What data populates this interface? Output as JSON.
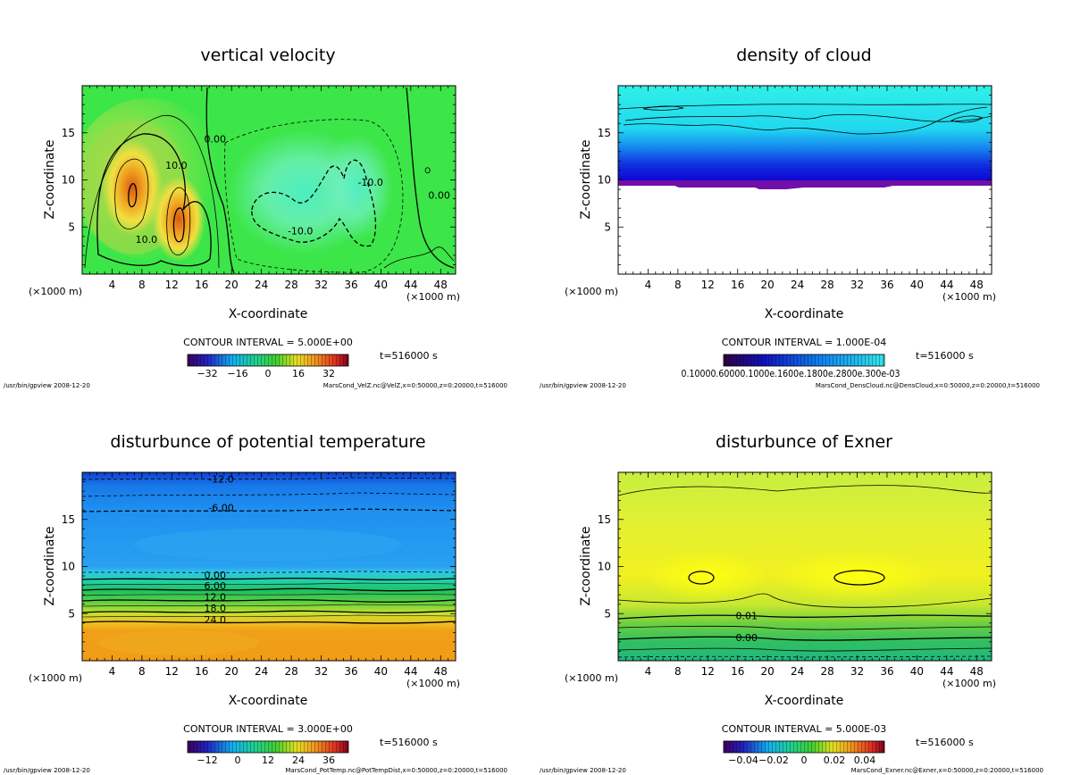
{
  "chart_data": [
    {
      "type": "heatmap",
      "key": "velz",
      "title": "vertical velocity",
      "xlabel": "X-coordinate",
      "ylabel": "Z-coordinate",
      "x_unit": "(×1000 m)",
      "xlim": [
        0,
        50
      ],
      "ylim": [
        0,
        20
      ],
      "xticks": [
        4,
        8,
        12,
        16,
        20,
        24,
        28,
        32,
        36,
        40,
        44,
        48
      ],
      "yticks": [
        5,
        10,
        15
      ],
      "contour_interval": "CONTOUR INTERVAL = 5.000E+00",
      "time": "t=516000 s",
      "colorbar_ticks": [
        "−32",
        "−16",
        "0",
        "16",
        "32"
      ],
      "contour_labels": [
        {
          "text": "10.0",
          "x": 12.6,
          "z": 11.2
        },
        {
          "text": "10.0",
          "x": 8.6,
          "z": 3.3
        },
        {
          "text": "0.00",
          "x": 17.8,
          "z": 14.0
        },
        {
          "text": "0.00",
          "x": 47.8,
          "z": 8.0
        },
        {
          "text": "-10.0",
          "x": 29.2,
          "z": 4.2
        },
        {
          "text": "-10.0",
          "x": 38.6,
          "z": 9.4
        }
      ],
      "footer_left": "/usr/bin/gpview  2008-12-20",
      "footer_right": "MarsCond_VelZ.nc@VelZ,x=0:50000,z=0:20000,t=516000"
    },
    {
      "type": "heatmap",
      "key": "cloud",
      "title": "density of cloud",
      "xlabel": "X-coordinate",
      "ylabel": "Z-coordinate",
      "x_unit": "(×1000 m)",
      "xlim": [
        0,
        50
      ],
      "ylim": [
        0,
        20
      ],
      "xticks": [
        4,
        8,
        12,
        16,
        20,
        24,
        28,
        32,
        36,
        40,
        44,
        48
      ],
      "yticks": [
        5,
        10,
        15
      ],
      "contour_interval": "CONTOUR INTERVAL = 1.000E-04",
      "time": "t=516000 s",
      "colorbar_ticks_text": "0.10000.60000.1000e.1600e.1800e.2800e.300e-03",
      "contour_labels": [],
      "footer_left": "/usr/bin/gpview  2008-12-20",
      "footer_right": "MarsCond_DensCloud.nc@DensCloud,x=0:50000,z=0:20000,t=516000"
    },
    {
      "type": "heatmap",
      "key": "ptemp",
      "title": "disturbunce of potential temperature",
      "xlabel": "X-coordinate",
      "ylabel": "Z-coordinate",
      "x_unit": "(×1000 m)",
      "xlim": [
        0,
        50
      ],
      "ylim": [
        0,
        20
      ],
      "xticks": [
        4,
        8,
        12,
        16,
        20,
        24,
        28,
        32,
        36,
        40,
        44,
        48
      ],
      "yticks": [
        5,
        10,
        15
      ],
      "contour_interval": "CONTOUR INTERVAL = 3.000E+00",
      "time": "t=516000 s",
      "colorbar_ticks": [
        "−12",
        "0",
        "12",
        "24",
        "36"
      ],
      "contour_labels": [
        {
          "text": "-12.0",
          "x": 18.6,
          "z": 18.9
        },
        {
          "text": "-6.00",
          "x": 18.6,
          "z": 15.9
        },
        {
          "text": "0.00",
          "x": 17.8,
          "z": 8.7
        },
        {
          "text": "6.00",
          "x": 17.8,
          "z": 7.6
        },
        {
          "text": "12.0",
          "x": 17.8,
          "z": 6.4
        },
        {
          "text": "18.0",
          "x": 17.8,
          "z": 5.2
        },
        {
          "text": "24.0",
          "x": 17.8,
          "z": 4.0
        }
      ],
      "footer_left": "/usr/bin/gpview  2008-12-20",
      "footer_right": "MarsCond_PotTemp.nc@PotTempDist,x=0:50000,z=0:20000,t=516000"
    },
    {
      "type": "heatmap",
      "key": "exner",
      "title": "disturbunce of Exner",
      "xlabel": "X-coordinate",
      "ylabel": "Z-coordinate",
      "x_unit": "(×1000 m)",
      "xlim": [
        0,
        50
      ],
      "ylim": [
        0,
        20
      ],
      "xticks": [
        4,
        8,
        12,
        16,
        20,
        24,
        28,
        32,
        36,
        40,
        44,
        48
      ],
      "yticks": [
        5,
        10,
        15
      ],
      "contour_interval": "CONTOUR INTERVAL = 5.000E-03",
      "time": "t=516000 s",
      "colorbar_ticks": [
        "−0.04",
        "−0.02",
        "0",
        "0.02",
        "0.04"
      ],
      "contour_labels": [
        {
          "text": "0.01",
          "x": 17.2,
          "z": 4.4
        },
        {
          "text": "0.00",
          "x": 17.2,
          "z": 2.1
        }
      ],
      "footer_left": "/usr/bin/gpview  2008-12-20",
      "footer_right": "MarsCond_Exner.nc@Exner,x=0:50000,z=0:20000,t=516000"
    }
  ]
}
